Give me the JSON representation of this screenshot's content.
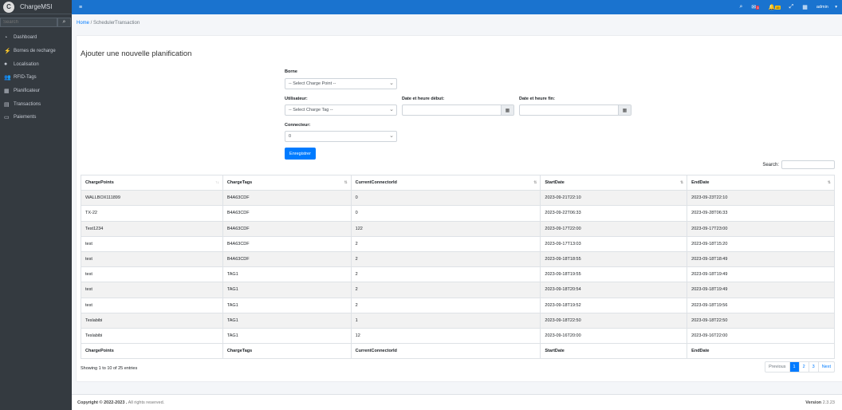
{
  "app": {
    "name": "ChargeMSI",
    "logo_text": "C"
  },
  "sidebar": {
    "search_placeholder": "Search",
    "items": [
      {
        "label": "Dashboard",
        "icon": "dashboard-icon"
      },
      {
        "label": "Bornes de recharge",
        "icon": "plug-icon"
      },
      {
        "label": "Localisation",
        "icon": "map-marker-icon"
      },
      {
        "label": "RFID-Tags",
        "icon": "users-icon"
      },
      {
        "label": "Planificateur",
        "icon": "calendar-icon"
      },
      {
        "label": "Transactions",
        "icon": "file-icon"
      },
      {
        "label": "Paiements",
        "icon": "credit-card-icon"
      }
    ]
  },
  "topbar": {
    "user": "admin",
    "badge1": "3",
    "badge2": "15"
  },
  "breadcrumb": {
    "home": "Home",
    "current": "SchedulerTransaction"
  },
  "form": {
    "title": "Ajouter une nouvelle planification",
    "borne_label": "Borne",
    "borne_value": "-- Select Charge Point --",
    "user_label": "Utilisateur:",
    "user_value": "-- Select Charge Tag --",
    "start_label": "Date et heure début:",
    "end_label": "Date et heure fin:",
    "connector_label": "Connecteur:",
    "connector_value": "0",
    "submit": "Enregistrer"
  },
  "table": {
    "search_label": "Search:",
    "columns": [
      "ChargePoints",
      "ChargeTags",
      "CurrentConnectorId",
      "StartDate",
      "EndDate"
    ],
    "rows": [
      [
        "WALLBOX111899",
        "B4A63CDF",
        "0",
        "2023-09-21T22:10",
        "2023-09-23T22:10"
      ],
      [
        "TX-22",
        "B4A63CDF",
        "0",
        "2023-09-22T06:33",
        "2023-09-28T06:33"
      ],
      [
        "Test1234",
        "B4A63CDF",
        "122",
        "2023-09-17T22:00",
        "2023-09-17T23:00"
      ],
      [
        "test",
        "B4A63CDF",
        "2",
        "2023-09-17T13:03",
        "2023-09-18T15:20"
      ],
      [
        "test",
        "B4A63CDF",
        "2",
        "2023-09-18T18:55",
        "2023-09-18T18:49"
      ],
      [
        "test",
        "TAG1",
        "2",
        "2023-09-18T19:55",
        "2023-09-18T19:49"
      ],
      [
        "test",
        "TAG1",
        "2",
        "2023-09-18T20:54",
        "2023-09-18T19:49"
      ],
      [
        "test",
        "TAG1",
        "2",
        "2023-09-18T19:52",
        "2023-09-18T19:56"
      ],
      [
        "Teslabibi",
        "TAG1",
        "1",
        "2023-09-18T22:50",
        "2023-09-18T22:50"
      ],
      [
        "Teslabibi",
        "TAG1",
        "12",
        "2023-09-16T20:00",
        "2023-09-16T22:00"
      ]
    ],
    "info": "Showing 1 to 10 of 25 entries",
    "pager": [
      "Previous",
      "1",
      "2",
      "3",
      "Next"
    ],
    "active_page": "1"
  },
  "footer": {
    "copyright": "Copyright © 2022-2023 .",
    "rights": " All rights reserved.",
    "version_label": "Version",
    "version": "2.3.23"
  },
  "colors": {
    "topbar": "#1a73cf",
    "sidebar": "#343a40",
    "primary": "#007bff"
  }
}
